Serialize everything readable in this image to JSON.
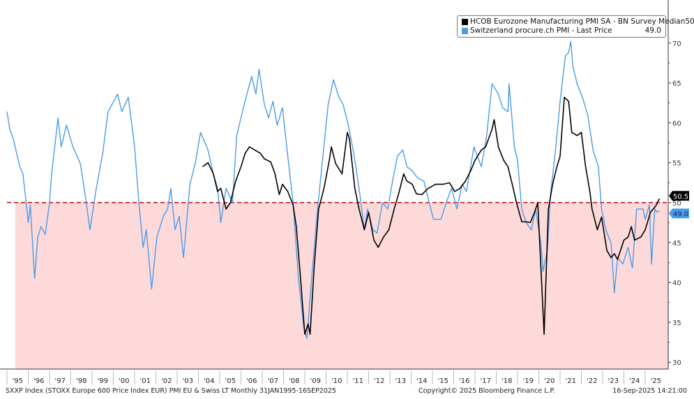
{
  "chart_data": {
    "type": "line",
    "title": "",
    "xlabel": "",
    "ylabel": "",
    "xlim": [
      1995.0,
      2025.8
    ],
    "ylim": [
      30,
      71
    ],
    "y_ticks": [
      30,
      35,
      40,
      45,
      50,
      55,
      60,
      65,
      70
    ],
    "y_axis_side": "right",
    "x_tick_labels": [
      "'95",
      "'96",
      "'97",
      "'98",
      "'99",
      "'00",
      "'01",
      "'02",
      "'03",
      "'04",
      "'05",
      "'06",
      "'07",
      "'08",
      "'09",
      "'10",
      "'11",
      "'12",
      "'13",
      "'14",
      "'15",
      "'16",
      "'17",
      "'18",
      "'19",
      "'20",
      "'21",
      "'22",
      "'23",
      "'24",
      "'25"
    ],
    "grid": false,
    "legend_position": "top-right",
    "reference_line": {
      "value": 50,
      "color": "#cc0000",
      "style": "dashed",
      "below_fill": "#fdd9d9"
    },
    "series": [
      {
        "name": "HCOB Eurozone Manufacturing PMI SA - BN Survey Median",
        "last_value": "50.5",
        "color": "#000000",
        "x": [
          2004.2,
          2004.45,
          2004.7,
          2004.9,
          2005.05,
          2005.3,
          2005.5,
          2005.75,
          2006.0,
          2006.2,
          2006.4,
          2006.65,
          2006.9,
          2007.1,
          2007.4,
          2007.6,
          2007.8,
          2007.95,
          2008.2,
          2008.45,
          2008.6,
          2008.8,
          2009.0,
          2009.15,
          2009.25,
          2009.45,
          2009.65,
          2009.9,
          2010.15,
          2010.25,
          2010.45,
          2010.75,
          2011.0,
          2011.1,
          2011.35,
          2011.55,
          2011.8,
          2012.0,
          2012.25,
          2012.45,
          2012.7,
          2012.95,
          2013.2,
          2013.4,
          2013.65,
          2013.8,
          2014.05,
          2014.25,
          2014.5,
          2014.8,
          2015.15,
          2015.5,
          2015.8,
          2016.05,
          2016.3,
          2016.55,
          2016.8,
          2017.0,
          2017.3,
          2017.5,
          2017.8,
          2017.9,
          2018.1,
          2018.35,
          2018.55,
          2018.75,
          2018.95,
          2019.2,
          2019.4,
          2019.6,
          2019.8,
          2019.95,
          2020.25,
          2020.45,
          2020.65,
          2020.85,
          2021.0,
          2021.2,
          2021.4,
          2021.55,
          2021.8,
          2022.0,
          2022.2,
          2022.4,
          2022.5,
          2022.75,
          2022.95,
          2023.2,
          2023.4,
          2023.55,
          2023.7,
          2024.0,
          2024.2,
          2024.35,
          2024.5,
          2024.8,
          2025.0,
          2025.25,
          2025.5,
          2025.67
        ],
        "values": [
          54.5,
          55.0,
          53.6,
          51.4,
          51.8,
          49.2,
          50.0,
          52.7,
          54.5,
          56.2,
          57.0,
          56.6,
          56.2,
          55.5,
          55.1,
          53.6,
          51.0,
          52.3,
          51.4,
          49.7,
          47.0,
          40.5,
          33.5,
          34.8,
          33.5,
          42.3,
          49.2,
          51.8,
          55.3,
          57.0,
          54.9,
          53.6,
          58.8,
          58.0,
          51.8,
          49.2,
          46.6,
          48.8,
          45.3,
          44.4,
          45.7,
          46.6,
          49.2,
          51.0,
          53.6,
          52.7,
          52.3,
          51.1,
          51.0,
          51.8,
          52.3,
          52.3,
          52.5,
          51.4,
          51.8,
          52.7,
          54.0,
          55.3,
          56.6,
          57.0,
          59.2,
          60.4,
          57.0,
          55.3,
          54.5,
          52.3,
          50.0,
          47.6,
          47.6,
          47.5,
          48.8,
          50.0,
          33.5,
          49.2,
          52.3,
          54.5,
          55.8,
          63.2,
          62.7,
          58.8,
          58.4,
          58.8,
          54.5,
          51.4,
          49.2,
          46.6,
          48.2,
          44.0,
          43.1,
          43.6,
          42.9,
          45.3,
          45.7,
          47.0,
          45.3,
          45.7,
          46.6,
          48.8,
          49.6,
          50.5
        ]
      },
      {
        "name": "Switzerland procure.ch PMI - Last Price",
        "last_value": "49.0",
        "color": "#4a9be8",
        "x": [
          1995.0,
          1995.13,
          1995.3,
          1995.6,
          1995.75,
          1995.9,
          1996.0,
          1996.1,
          1996.3,
          1996.45,
          1996.6,
          1996.8,
          1997.0,
          1997.1,
          1997.4,
          1997.55,
          1997.8,
          1998.1,
          1998.45,
          1998.7,
          1998.9,
          1999.2,
          1999.5,
          1999.75,
          2000.2,
          2000.4,
          2000.7,
          2001.0,
          2001.2,
          2001.4,
          2001.55,
          2001.8,
          2002.05,
          2002.35,
          2002.55,
          2002.7,
          2002.9,
          2003.1,
          2003.3,
          2003.6,
          2003.85,
          2004.1,
          2004.45,
          2004.7,
          2004.9,
          2005.05,
          2005.3,
          2005.6,
          2005.8,
          2006.15,
          2006.5,
          2006.7,
          2006.85,
          2007.1,
          2007.3,
          2007.5,
          2007.7,
          2007.95,
          2008.2,
          2008.45,
          2008.7,
          2008.95,
          2009.1,
          2009.35,
          2009.6,
          2009.8,
          2010.1,
          2010.35,
          2010.6,
          2010.8,
          2011.05,
          2011.3,
          2011.55,
          2011.8,
          2011.95,
          2012.2,
          2012.4,
          2012.65,
          2012.9,
          2013.1,
          2013.35,
          2013.6,
          2013.8,
          2014.05,
          2014.3,
          2014.6,
          2014.85,
          2015.05,
          2015.4,
          2015.65,
          2015.9,
          2016.15,
          2016.4,
          2016.6,
          2016.95,
          2017.3,
          2017.55,
          2017.8,
          2018.1,
          2018.3,
          2018.55,
          2018.6,
          2018.85,
          2019.0,
          2019.2,
          2019.4,
          2019.65,
          2019.85,
          2020.1,
          2020.2,
          2020.4,
          2020.55,
          2020.8,
          2021.0,
          2021.25,
          2021.4,
          2021.5,
          2021.6,
          2021.8,
          2022.05,
          2022.3,
          2022.55,
          2022.8,
          2022.95,
          2023.15,
          2023.4,
          2023.55,
          2023.7,
          2023.95,
          2024.2,
          2024.4,
          2024.6,
          2024.9,
          2025.0,
          2025.2,
          2025.3,
          2025.45,
          2025.55,
          2025.67
        ],
        "values": [
          61.4,
          59.2,
          58.0,
          54.5,
          53.6,
          50.0,
          47.5,
          49.7,
          40.5,
          45.7,
          47.0,
          46.0,
          50.0,
          53.6,
          60.6,
          57.0,
          59.7,
          57.0,
          54.9,
          50.5,
          46.6,
          51.8,
          56.2,
          61.4,
          63.6,
          61.4,
          63.2,
          57.0,
          50.0,
          44.4,
          46.6,
          39.2,
          45.7,
          48.3,
          49.2,
          51.8,
          46.6,
          48.3,
          43.1,
          52.3,
          54.9,
          58.8,
          56.6,
          53.6,
          51.8,
          47.5,
          51.8,
          50.0,
          58.4,
          62.3,
          65.8,
          63.6,
          66.7,
          62.3,
          60.6,
          62.7,
          59.7,
          61.9,
          55.8,
          50.0,
          40.5,
          34.4,
          33.0,
          41.4,
          49.2,
          54.5,
          62.3,
          65.4,
          63.2,
          62.3,
          59.7,
          56.2,
          51.8,
          46.6,
          49.2,
          46.6,
          46.2,
          50.0,
          49.2,
          52.3,
          55.8,
          56.6,
          54.5,
          54.0,
          53.1,
          52.7,
          50.0,
          47.9,
          47.9,
          50.0,
          51.8,
          49.2,
          52.3,
          51.4,
          57.0,
          54.5,
          58.4,
          64.9,
          63.6,
          61.9,
          61.4,
          64.9,
          57.0,
          55.3,
          49.2,
          47.5,
          46.6,
          49.2,
          44.9,
          41.4,
          44.0,
          51.0,
          57.0,
          62.7,
          68.4,
          68.8,
          70.2,
          67.1,
          64.9,
          63.2,
          61.0,
          56.6,
          54.5,
          49.2,
          46.6,
          44.9,
          38.7,
          43.1,
          42.3,
          44.4,
          41.8,
          49.2,
          49.2,
          47.9,
          49.7,
          42.3,
          49.2,
          48.8,
          49.0
        ]
      }
    ]
  },
  "footer": {
    "left": "SXXP Index (STOXX Europe 600 Price Index EUR) PMI EU & Swiss LT  Monthly 31JAN1995-16SEP2025",
    "center": "Copyright© 2025 Bloomberg Finance L.P.",
    "right": "16-Sep-2025 14:21:00"
  }
}
